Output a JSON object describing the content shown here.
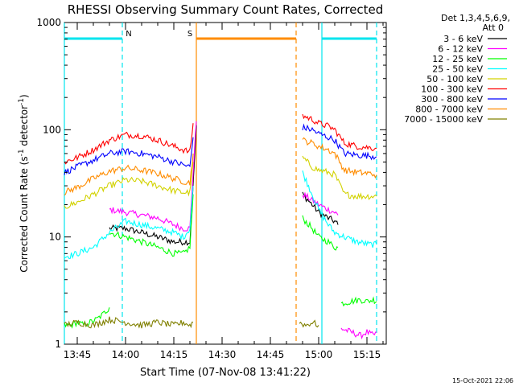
{
  "chart_data": {
    "type": "line",
    "title": "RHESSI Observing Summary Count Rates, Corrected",
    "xlabel": "Start Time (07-Nov-08 13:41:22)",
    "ylabel_main": "Corrected Count Rate (s",
    "ylabel_sup": "-1",
    "ylabel_mid": " detector",
    "ylabel_tail": ")",
    "footer": "15-Oct-2021 22:06",
    "legend_header": [
      "Det 1,3,4,5,6,9,",
      "Att 0"
    ],
    "legend_position": "outside-right-top",
    "y_scale": "log",
    "ylim": [
      1,
      1000
    ],
    "y_ticks": [
      {
        "value": 1,
        "label": "1"
      },
      {
        "value": 10,
        "label": "10"
      },
      {
        "value": 100,
        "label": "100"
      },
      {
        "value": 1000,
        "label": "1000"
      }
    ],
    "xlim": [
      "13:41",
      "15:21"
    ],
    "x_ticks": [
      "13:45",
      "14:00",
      "14:15",
      "14:30",
      "14:45",
      "15:00",
      "15:15"
    ],
    "flags": [
      {
        "label": "N",
        "start": "13:41",
        "end": "13:59",
        "color": "#00e5ee"
      },
      {
        "label": "S",
        "start": "14:22",
        "end": "14:53",
        "color": "#ff8c00"
      },
      {
        "label": "",
        "start": "15:01",
        "end": "15:18",
        "color": "#00e5ee"
      }
    ],
    "markers": [
      {
        "time": "13:41",
        "style": "solid",
        "color": "#00e5ee"
      },
      {
        "time": "13:59",
        "style": "dashed",
        "color": "#00e5ee"
      },
      {
        "time": "14:22",
        "style": "solid",
        "color": "#ff8c00"
      },
      {
        "time": "14:53",
        "style": "dashed",
        "color": "#ff8c00"
      },
      {
        "time": "15:01",
        "style": "solid",
        "color": "#00e5ee"
      },
      {
        "time": "15:18",
        "style": "dashed",
        "color": "#00e5ee"
      }
    ],
    "series": [
      {
        "name": "3 - 6 keV",
        "color": "#000000",
        "segments": [
          {
            "x": [
              "13:55",
              "14:00",
              "14:05",
              "14:10",
              "14:15",
              "14:18",
              "14:20",
              "14:21",
              "14:22"
            ],
            "y": [
              12,
              12,
              11,
              10,
              9,
              9,
              9,
              30,
              110
            ]
          },
          {
            "x": [
              "14:55",
              "14:58",
              "15:00",
              "15:03",
              "15:05",
              "15:06"
            ],
            "y": [
              25,
              20,
              17,
              15,
              14,
              13
            ]
          }
        ]
      },
      {
        "name": "6 - 12 keV",
        "color": "#ff00ff",
        "segments": [
          {
            "x": [
              "13:55",
              "14:00",
              "14:05",
              "14:10",
              "14:15",
              "14:18",
              "14:20",
              "14:21",
              "14:22"
            ],
            "y": [
              18,
              17,
              16,
              15,
              13,
              12,
              12,
              40,
              120
            ]
          },
          {
            "x": [
              "14:55",
              "14:58",
              "15:00",
              "15:03",
              "15:05",
              "15:06"
            ],
            "y": [
              25,
              22,
              20,
              18,
              17,
              16
            ]
          },
          {
            "x": [
              "15:07",
              "15:10",
              "15:13",
              "15:15",
              "15:17",
              "15:18"
            ],
            "y": [
              1.4,
              1.3,
              1.2,
              1.3,
              1.2,
              1.3
            ]
          }
        ]
      },
      {
        "name": "12 - 25 keV",
        "color": "#00ff00",
        "segments": [
          {
            "x": [
              "13:41",
              "13:43",
              "13:45",
              "13:47",
              "13:49",
              "13:51",
              "13:53",
              "13:55"
            ],
            "y": [
              1.5,
              1.5,
              1.6,
              1.5,
              1.6,
              1.7,
              1.9,
              2.2
            ]
          },
          {
            "x": [
              "13:55",
              "14:00",
              "14:05",
              "14:10",
              "14:15",
              "14:18",
              "14:20",
              "14:21"
            ],
            "y": [
              11,
              10,
              9,
              8,
              7,
              7,
              8,
              25
            ]
          },
          {
            "x": [
              "14:55",
              "14:58",
              "15:00",
              "15:03",
              "15:05",
              "15:06"
            ],
            "y": [
              15,
              12,
              10,
              9,
              8,
              8
            ]
          },
          {
            "x": [
              "15:07",
              "15:10",
              "15:13",
              "15:15",
              "15:17",
              "15:18"
            ],
            "y": [
              2.4,
              2.5,
              2.6,
              2.5,
              2.6,
              2.5
            ]
          }
        ]
      },
      {
        "name": "25 - 50 keV",
        "color": "#00ffff",
        "segments": [
          {
            "x": [
              "13:41",
              "13:45",
              "13:50",
              "13:55",
              "14:00",
              "14:05",
              "14:10",
              "14:15",
              "14:18",
              "14:20",
              "14:21"
            ],
            "y": [
              6.5,
              7,
              8,
              11,
              14,
              13,
              12,
              11,
              10,
              12,
              30
            ]
          },
          {
            "x": [
              "14:55",
              "14:58",
              "15:00",
              "15:03",
              "15:05",
              "15:08",
              "15:12",
              "15:16",
              "15:18"
            ],
            "y": [
              40,
              25,
              18,
              13,
              11,
              10,
              9,
              8.5,
              8.5
            ]
          }
        ]
      },
      {
        "name": "50 - 100 keV",
        "color": "#d2d200",
        "segments": [
          {
            "x": [
              "13:41",
              "13:45",
              "13:50",
              "13:55",
              "14:00",
              "14:05",
              "14:10",
              "14:15",
              "14:18",
              "14:20",
              "14:21"
            ],
            "y": [
              19,
              21,
              25,
              30,
              34,
              33,
              30,
              27,
              26,
              26,
              50
            ]
          },
          {
            "x": [
              "14:55",
              "14:58",
              "15:00",
              "15:03",
              "15:05",
              "15:08",
              "15:12",
              "15:16",
              "15:18"
            ],
            "y": [
              55,
              45,
              42,
              40,
              38,
              25,
              24,
              24,
              24
            ]
          }
        ]
      },
      {
        "name": "100 - 300 keV",
        "color": "#ff0000",
        "segments": [
          {
            "x": [
              "13:41",
              "13:45",
              "13:50",
              "13:55",
              "14:00",
              "14:05",
              "14:10",
              "14:15",
              "14:18",
              "14:20",
              "14:21"
            ],
            "y": [
              50,
              55,
              65,
              80,
              90,
              88,
              80,
              70,
              65,
              62,
              115
            ]
          },
          {
            "x": [
              "14:55",
              "14:58",
              "15:00",
              "15:03",
              "15:05",
              "15:08",
              "15:12",
              "15:16",
              "15:18"
            ],
            "y": [
              135,
              125,
              115,
              108,
              100,
              75,
              70,
              68,
              67
            ]
          }
        ]
      },
      {
        "name": "300 - 800 keV",
        "color": "#0000ff",
        "segments": [
          {
            "x": [
              "13:41",
              "13:45",
              "13:50",
              "13:55",
              "14:00",
              "14:05",
              "14:10",
              "14:15",
              "14:18",
              "14:20",
              "14:21"
            ],
            "y": [
              40,
              45,
              52,
              60,
              63,
              60,
              56,
              50,
              47,
              45,
              85
            ]
          },
          {
            "x": [
              "14:55",
              "14:58",
              "15:00",
              "15:03",
              "15:05",
              "15:08",
              "15:12",
              "15:16",
              "15:18"
            ],
            "y": [
              105,
              100,
              92,
              85,
              80,
              60,
              58,
              57,
              56
            ]
          }
        ]
      },
      {
        "name": "800 - 7000 keV",
        "color": "#ff8c00",
        "segments": [
          {
            "x": [
              "13:41",
              "13:45",
              "13:50",
              "13:55",
              "14:00",
              "14:05",
              "14:10",
              "14:15",
              "14:18",
              "14:20",
              "14:21"
            ],
            "y": [
              26,
              29,
              35,
              41,
              44,
              42,
              39,
              35,
              33,
              32,
              60
            ]
          },
          {
            "x": [
              "14:55",
              "14:58",
              "15:00",
              "15:03",
              "15:05",
              "15:08",
              "15:12",
              "15:16",
              "15:18"
            ],
            "y": [
              80,
              75,
              70,
              65,
              60,
              42,
              40,
              39,
              38
            ]
          }
        ]
      },
      {
        "name": "7000 - 15000 keV",
        "color": "#808000",
        "segments": [
          {
            "x": [
              "13:41",
              "13:45",
              "13:50",
              "13:55",
              "14:00",
              "14:05",
              "14:10",
              "14:15",
              "14:18",
              "14:20",
              "14:21"
            ],
            "y": [
              1.5,
              1.6,
              1.5,
              1.7,
              1.6,
              1.5,
              1.6,
              1.5,
              1.6,
              1.5,
              1.6
            ]
          },
          {
            "x": [
              "14:54",
              "14:56",
              "14:58",
              "15:00"
            ],
            "y": [
              1.6,
              1.5,
              1.6,
              1.5
            ]
          }
        ]
      }
    ]
  }
}
